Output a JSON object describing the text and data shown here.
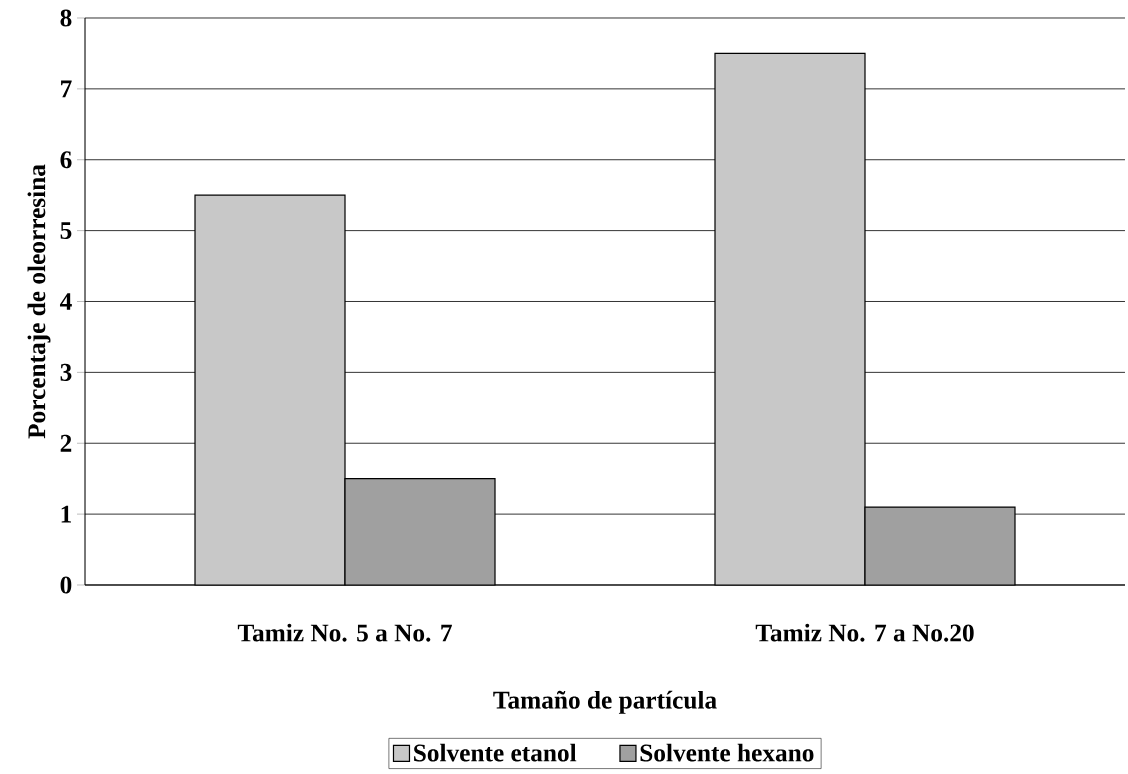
{
  "chart_data": {
    "type": "bar",
    "xlabel": "Tamaño de partícula",
    "ylabel": "Porcentaje de oleorresina",
    "categories": [
      "Tamiz No. 5 a No. 7",
      "Tamiz No. 7 a No.20"
    ],
    "series": [
      {
        "name": "Solvente etanol",
        "color": "#c8c8c8",
        "values": [
          5.5,
          7.5
        ]
      },
      {
        "name": "Solvente hexano",
        "color": "#a0a0a0",
        "values": [
          1.5,
          1.1
        ]
      }
    ],
    "ylim": [
      0,
      8
    ],
    "yticks": [
      0,
      1,
      2,
      3,
      4,
      5,
      6,
      7,
      8
    ],
    "grid": "y",
    "legend": "bottom"
  }
}
